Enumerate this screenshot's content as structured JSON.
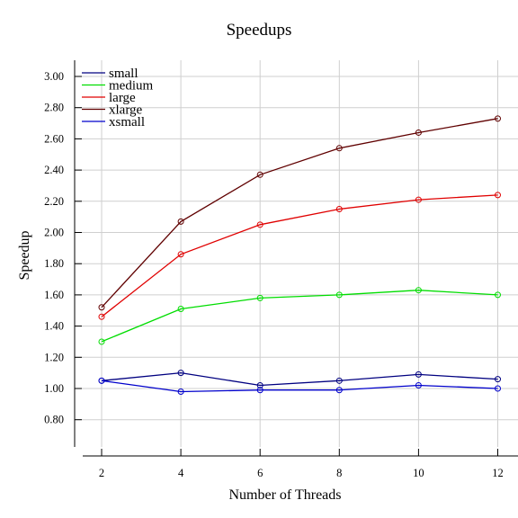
{
  "chart_data": {
    "type": "line",
    "title": "Speedups",
    "xlabel": "Number of Threads",
    "ylabel": "Speedup",
    "x": [
      2,
      4,
      6,
      8,
      10,
      12
    ],
    "x_ticks": [
      "2",
      "4",
      "6",
      "8",
      "10",
      "12"
    ],
    "y_ticks": [
      "0.80",
      "1.00",
      "1.20",
      "1.40",
      "1.60",
      "1.80",
      "2.00",
      "2.20",
      "2.40",
      "2.60",
      "2.80",
      "3.00"
    ],
    "ylim": [
      0.6,
      3.05
    ],
    "xlim": [
      1.7,
      12.5
    ],
    "grid": "vertical and horizontal",
    "legend_position": "top-left",
    "markers": "hollow circles",
    "series": [
      {
        "name": "small",
        "color": "#000080",
        "values": [
          1.05,
          1.1,
          1.02,
          1.05,
          1.09,
          1.06
        ]
      },
      {
        "name": "medium",
        "color": "#00dd00",
        "values": [
          1.3,
          1.51,
          1.58,
          1.6,
          1.63,
          1.6
        ]
      },
      {
        "name": "large",
        "color": "#e00000",
        "values": [
          1.46,
          1.86,
          2.05,
          2.15,
          2.21,
          2.24
        ]
      },
      {
        "name": "xlarge",
        "color": "#600000",
        "values": [
          1.52,
          2.07,
          2.37,
          2.54,
          2.64,
          2.73
        ]
      },
      {
        "name": "xsmall",
        "color": "#0000cc",
        "values": [
          1.05,
          0.98,
          0.99,
          0.99,
          1.02,
          1.0
        ]
      }
    ]
  }
}
